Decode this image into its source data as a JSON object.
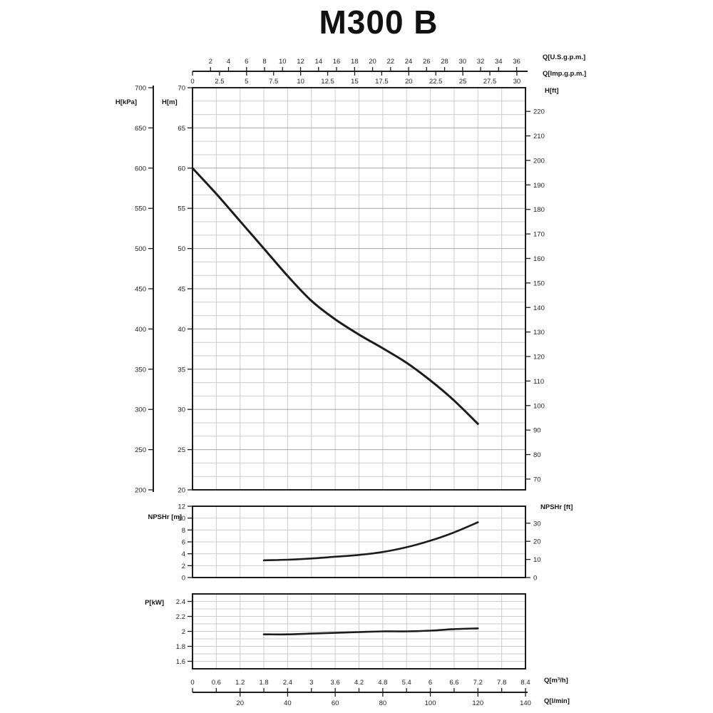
{
  "title": "M300 B",
  "chart_data": {
    "type": "line",
    "title": "M300 B",
    "grid": "on",
    "colors": {
      "curve": "#1c1c1c",
      "grid_minor": "#cccccc",
      "grid_major": "#a6a6a6",
      "axis": "#1c1c1c",
      "tick_text": "#222222"
    },
    "axes": {
      "flow_m3h": {
        "label": "Q[m³/h]",
        "min": 0,
        "max": 8.4,
        "tick_values": [
          0,
          0.6,
          1.2,
          1.8,
          2.4,
          3,
          3.6,
          4.2,
          4.8,
          5.4,
          6,
          6.6,
          7.2,
          7.8,
          8.4
        ],
        "tick_labels": [
          "0",
          "0.6",
          "1.2",
          "1.8",
          "2.4",
          "3",
          "3.6",
          "4.2",
          "4.8",
          "5.4",
          "6",
          "6.6",
          "7.2",
          "7.8",
          "8.4"
        ]
      },
      "flow_lmin": {
        "label": "Q[l/min]",
        "m3h_per_unit": 0.06,
        "tick_values": [
          20,
          40,
          60,
          80,
          100,
          120,
          140
        ],
        "tick_labels": [
          "20",
          "40",
          "60",
          "80",
          "100",
          "120",
          "140"
        ]
      },
      "flow_usgpm": {
        "label": "Q[U.S.g.p.m.]",
        "m3h_per_unit": 0.22712,
        "tick_values": [
          2,
          4,
          6,
          8,
          10,
          12,
          14,
          16,
          18,
          20,
          22,
          24,
          26,
          28,
          30,
          32,
          34,
          36
        ],
        "tick_labels": [
          "2",
          "4",
          "6",
          "8",
          "10",
          "12",
          "14",
          "16",
          "18",
          "20",
          "22",
          "24",
          "26",
          "28",
          "30",
          "32",
          "34",
          "36"
        ]
      },
      "flow_impgpm": {
        "label": "Q[Imp.g.p.m.]",
        "m3h_per_unit": 0.27277,
        "tick_values": [
          0,
          2.5,
          5,
          7.5,
          10,
          12.5,
          15,
          17.5,
          20,
          22.5,
          25,
          27.5,
          30
        ],
        "tick_labels": [
          "0",
          "2.5",
          "5",
          "7.5",
          "10",
          "12.5",
          "15",
          "17.5",
          "20",
          "22.5",
          "25",
          "27.5",
          "30"
        ]
      },
      "head_m": {
        "label": "H[m]",
        "min": 20,
        "max": 70,
        "grid_step_m": 1.6667,
        "major_step_m": 5,
        "tick_values": [
          70,
          65,
          60,
          55,
          50,
          45,
          40,
          35,
          30,
          25,
          20
        ],
        "tick_labels": [
          "70",
          "65",
          "60",
          "55",
          "50",
          "45",
          "40",
          "35",
          "30",
          "25",
          "20"
        ]
      },
      "head_kpa": {
        "label": "H[kPa]",
        "min": 200,
        "max": 700,
        "tick_values": [
          700,
          650,
          600,
          550,
          500,
          450,
          400,
          350,
          300,
          250,
          200
        ],
        "tick_labels": [
          "700",
          "650",
          "600",
          "550",
          "500",
          "450",
          "400",
          "350",
          "300",
          "250",
          "200"
        ]
      },
      "head_ft": {
        "label": "H[ft]",
        "m_per_ft": 0.3048,
        "tick_values": [
          220,
          210,
          200,
          190,
          180,
          170,
          160,
          150,
          140,
          130,
          120,
          110,
          100,
          90,
          80,
          70
        ],
        "tick_labels": [
          "220",
          "210",
          "200",
          "190",
          "180",
          "170",
          "160",
          "150",
          "140",
          "130",
          "120",
          "110",
          "100",
          "90",
          "80",
          "70"
        ]
      },
      "npsh_m": {
        "label": "NPSHr [m]",
        "min": 0,
        "max": 12,
        "grid_step_m": 2,
        "tick_values": [
          12,
          10,
          8,
          6,
          4,
          2,
          0
        ],
        "tick_labels": [
          "12",
          "10",
          "8",
          "6",
          "4",
          "2",
          "0"
        ]
      },
      "npsh_ft": {
        "label": "NPSHr [ft]",
        "m_per_ft": 0.3048,
        "tick_values": [
          30,
          20,
          10,
          0
        ],
        "tick_labels": [
          "30",
          "20",
          "10",
          "0"
        ]
      },
      "power_kw": {
        "label": "P[kW]",
        "min": 1.5,
        "max": 2.5,
        "grid_step_kw": 0.1,
        "tick_values": [
          2.4,
          2.2,
          2,
          1.8,
          1.6
        ],
        "tick_labels": [
          "2.4",
          "2.2",
          "2",
          "1.8",
          "1.6"
        ]
      }
    },
    "series": [
      {
        "name": "head",
        "x_m3h": [
          0,
          0.6,
          1.2,
          1.8,
          2.4,
          3.0,
          3.6,
          4.2,
          4.8,
          5.4,
          6.0,
          6.6,
          7.2
        ],
        "y_m": [
          60,
          56.8,
          53.4,
          50.0,
          46.6,
          43.5,
          41.2,
          39.3,
          37.6,
          35.8,
          33.6,
          31.1,
          28.2
        ]
      },
      {
        "name": "npshr",
        "x_m3h": [
          1.8,
          2.4,
          3.0,
          3.6,
          4.2,
          4.8,
          5.4,
          6.0,
          6.6,
          7.2
        ],
        "y_m": [
          2.9,
          3.0,
          3.2,
          3.5,
          3.8,
          4.3,
          5.1,
          6.2,
          7.6,
          9.3
        ]
      },
      {
        "name": "power",
        "x_m3h": [
          1.8,
          2.4,
          3.0,
          3.6,
          4.2,
          4.8,
          5.4,
          6.0,
          6.6,
          7.2
        ],
        "y_kw": [
          1.96,
          1.96,
          1.97,
          1.98,
          1.99,
          2.0,
          2.0,
          2.01,
          2.03,
          2.04
        ]
      }
    ]
  }
}
